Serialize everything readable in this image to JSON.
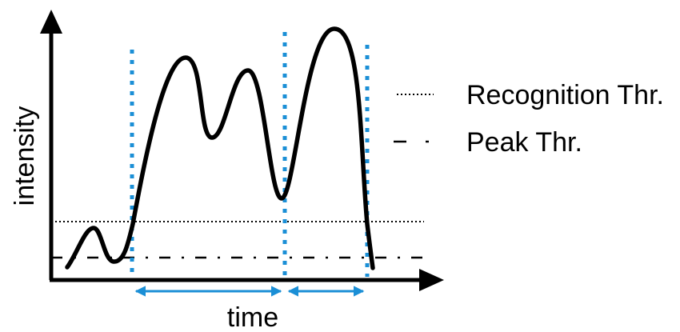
{
  "axes": {
    "x_label": "time",
    "y_label": "intensity"
  },
  "legend": {
    "items": [
      {
        "label": "Recognition Thr.",
        "style": "dotted"
      },
      {
        "label": "Peak Thr.",
        "style": "dash-dot"
      }
    ]
  },
  "colors": {
    "curve": "#000000",
    "thresholds": "#000000",
    "boundaries": "#1b8fd6",
    "arrows": "#1b8fd6"
  }
}
